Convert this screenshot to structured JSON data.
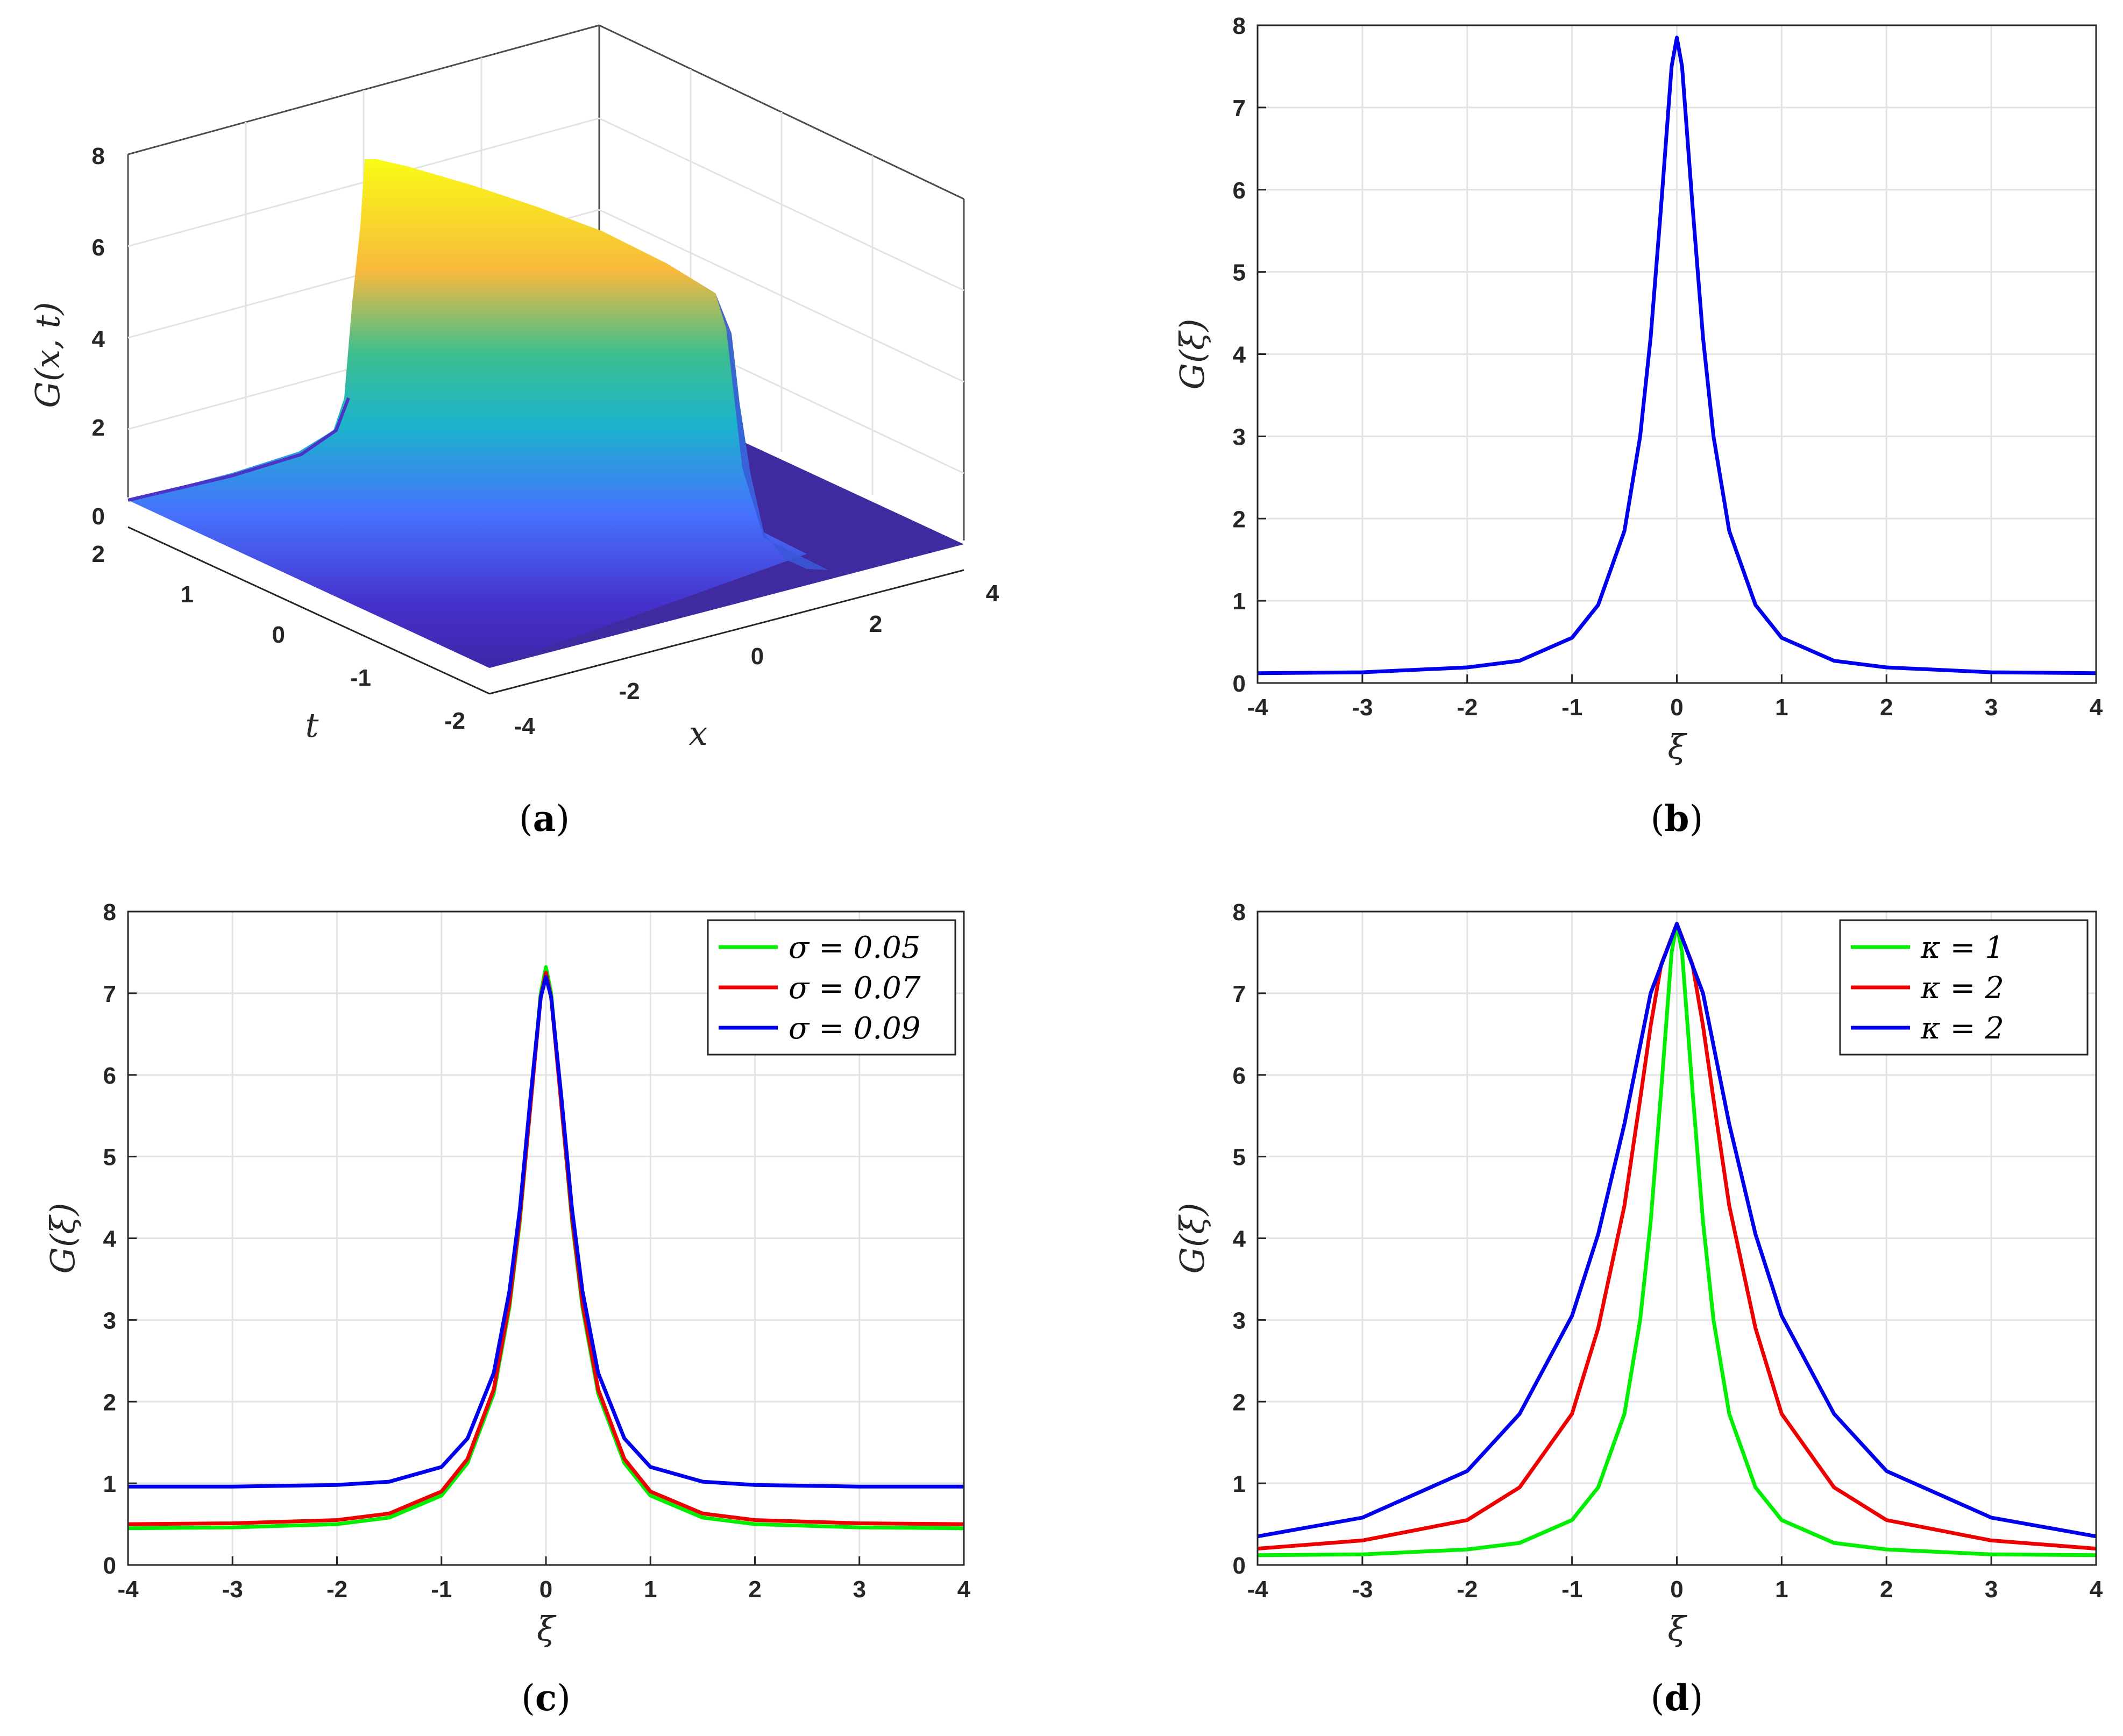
{
  "chart_data": [
    {
      "panel": "a",
      "type": "surface",
      "caption": "a",
      "xlabel": "x",
      "ylabel": "t",
      "zlabel": "G(x, t)",
      "xlim": [
        -4,
        4
      ],
      "ylim": [
        -2,
        2
      ],
      "zlim": [
        0,
        8
      ],
      "xticks": [
        "-4",
        "-2",
        "0",
        "2",
        "4"
      ],
      "yticks": [
        "-2",
        "-1",
        "0",
        "1",
        "2"
      ],
      "zticks": [
        "0",
        "2",
        "4",
        "6",
        "8"
      ],
      "colormap": [
        "#3e26a8",
        "#4771fe",
        "#1cb4cc",
        "#3ebe8d",
        "#f8b93d",
        "#f9fb15"
      ],
      "surface": {
        "peak_at_t_minus2": 4.7,
        "peak_at_t_plus2": 7.8,
        "baseline": 0.35
      }
    },
    {
      "panel": "b",
      "type": "line",
      "caption": "b",
      "xlabel": "ξ",
      "ylabel": "G(ξ)",
      "xlim": [
        -4,
        4
      ],
      "ylim": [
        0,
        8
      ],
      "xticks": [
        "-4",
        "-3",
        "-2",
        "-1",
        "0",
        "1",
        "2",
        "3",
        "4"
      ],
      "yticks": [
        "0",
        "1",
        "2",
        "3",
        "4",
        "5",
        "6",
        "7",
        "8"
      ],
      "grid": true,
      "series": [
        {
          "color": "#0000ee",
          "x": [
            -4,
            -3,
            -2,
            -1.5,
            -1,
            -0.75,
            -0.5,
            -0.35,
            -0.25,
            -0.15,
            -0.05,
            0,
            0.05,
            0.15,
            0.25,
            0.35,
            0.5,
            0.75,
            1,
            1.5,
            2,
            3,
            4
          ],
          "y": [
            0.12,
            0.13,
            0.19,
            0.27,
            0.55,
            0.95,
            1.85,
            3.0,
            4.2,
            5.8,
            7.5,
            7.85,
            7.5,
            5.8,
            4.2,
            3.0,
            1.85,
            0.95,
            0.55,
            0.27,
            0.19,
            0.13,
            0.12
          ]
        }
      ]
    },
    {
      "panel": "c",
      "type": "line",
      "caption": "c",
      "xlabel": "ξ",
      "ylabel": "G(ξ)",
      "xlim": [
        -4,
        4
      ],
      "ylim": [
        0,
        8
      ],
      "xticks": [
        "-4",
        "-3",
        "-2",
        "-1",
        "0",
        "1",
        "2",
        "3",
        "4"
      ],
      "yticks": [
        "0",
        "1",
        "2",
        "3",
        "4",
        "5",
        "6",
        "7",
        "8"
      ],
      "grid": true,
      "legend_position": "top-right",
      "series": [
        {
          "name": "σ = 0.05",
          "color": "#00ee00",
          "x": [
            -4,
            -3,
            -2,
            -1.5,
            -1,
            -0.75,
            -0.5,
            -0.35,
            -0.25,
            -0.15,
            -0.05,
            0,
            0.05,
            0.15,
            0.25,
            0.35,
            0.5,
            0.75,
            1,
            1.5,
            2,
            3,
            4
          ],
          "y": [
            0.45,
            0.46,
            0.5,
            0.58,
            0.85,
            1.25,
            2.1,
            3.15,
            4.2,
            5.6,
            7.0,
            7.32,
            7.0,
            5.6,
            4.2,
            3.15,
            2.1,
            1.25,
            0.85,
            0.58,
            0.5,
            0.46,
            0.45
          ]
        },
        {
          "name": "σ = 0.07",
          "color": "#ee0000",
          "x": [
            -4,
            -3,
            -2,
            -1.5,
            -1,
            -0.75,
            -0.5,
            -0.35,
            -0.25,
            -0.15,
            -0.05,
            0,
            0.05,
            0.15,
            0.25,
            0.35,
            0.5,
            0.75,
            1,
            1.5,
            2,
            3,
            4
          ],
          "y": [
            0.5,
            0.51,
            0.55,
            0.63,
            0.9,
            1.3,
            2.15,
            3.2,
            4.25,
            5.6,
            6.95,
            7.25,
            6.95,
            5.6,
            4.25,
            3.2,
            2.15,
            1.3,
            0.9,
            0.63,
            0.55,
            0.51,
            0.5
          ]
        },
        {
          "name": "σ = 0.09",
          "color": "#0000ee",
          "x": [
            -4,
            -3,
            -2,
            -1.5,
            -1,
            -0.75,
            -0.5,
            -0.35,
            -0.25,
            -0.15,
            -0.05,
            0,
            0.05,
            0.15,
            0.25,
            0.35,
            0.5,
            0.75,
            1,
            1.5,
            2,
            3,
            4
          ],
          "y": [
            0.96,
            0.96,
            0.98,
            1.02,
            1.2,
            1.55,
            2.35,
            3.35,
            4.35,
            5.7,
            6.95,
            7.2,
            6.95,
            5.7,
            4.35,
            3.35,
            2.35,
            1.55,
            1.2,
            1.02,
            0.98,
            0.96,
            0.96
          ]
        }
      ]
    },
    {
      "panel": "d",
      "type": "line",
      "caption": "d",
      "xlabel": "ξ",
      "ylabel": "G(ξ)",
      "xlim": [
        -4,
        4
      ],
      "ylim": [
        0,
        8
      ],
      "xticks": [
        "-4",
        "-3",
        "-2",
        "-1",
        "0",
        "1",
        "2",
        "3",
        "4"
      ],
      "yticks": [
        "0",
        "1",
        "2",
        "3",
        "4",
        "5",
        "6",
        "7",
        "8"
      ],
      "grid": true,
      "legend_position": "top-right",
      "series": [
        {
          "name": "κ = 1",
          "color": "#00ee00",
          "x": [
            -4,
            -3,
            -2,
            -1.5,
            -1,
            -0.75,
            -0.5,
            -0.35,
            -0.25,
            -0.15,
            -0.05,
            0,
            0.05,
            0.15,
            0.25,
            0.35,
            0.5,
            0.75,
            1,
            1.5,
            2,
            3,
            4
          ],
          "y": [
            0.12,
            0.13,
            0.19,
            0.27,
            0.55,
            0.95,
            1.85,
            3.0,
            4.2,
            5.8,
            7.5,
            7.85,
            7.5,
            5.8,
            4.2,
            3.0,
            1.85,
            0.95,
            0.55,
            0.27,
            0.19,
            0.13,
            0.12
          ]
        },
        {
          "name": "κ = 2",
          "color": "#ee0000",
          "x": [
            -4,
            -3,
            -2,
            -1.5,
            -1,
            -0.75,
            -0.5,
            -0.35,
            -0.25,
            -0.15,
            0,
            0.15,
            0.25,
            0.35,
            0.5,
            0.75,
            1,
            1.5,
            2,
            3,
            4
          ],
          "y": [
            0.2,
            0.3,
            0.55,
            0.95,
            1.85,
            2.9,
            4.4,
            5.7,
            6.6,
            7.35,
            7.85,
            7.35,
            6.6,
            5.7,
            4.4,
            2.9,
            1.85,
            0.95,
            0.55,
            0.3,
            0.2
          ]
        },
        {
          "name": "κ = 2",
          "color": "#0000ee",
          "x": [
            -4,
            -3,
            -2,
            -1.5,
            -1,
            -0.75,
            -0.5,
            -0.25,
            0,
            0.25,
            0.5,
            0.75,
            1,
            1.5,
            2,
            3,
            4
          ],
          "y": [
            0.35,
            0.58,
            1.15,
            1.85,
            3.05,
            4.05,
            5.4,
            7.0,
            7.85,
            7.0,
            5.4,
            4.05,
            3.05,
            1.85,
            1.15,
            0.58,
            0.35
          ]
        }
      ]
    }
  ]
}
